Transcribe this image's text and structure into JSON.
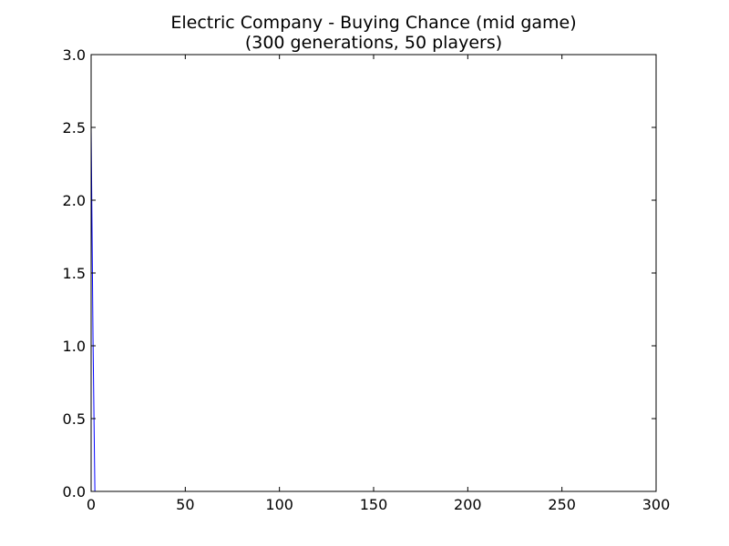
{
  "chart_data": {
    "type": "line",
    "title": "Electric Company - Buying Chance (mid game)",
    "subtitle": "(300 generations, 50 players)",
    "xlabel": "",
    "ylabel": "",
    "xlim": [
      0,
      300
    ],
    "ylim": [
      0.0,
      3.0
    ],
    "x_ticks": [
      0,
      50,
      100,
      150,
      200,
      250,
      300
    ],
    "y_ticks": [
      0.0,
      0.5,
      1.0,
      1.5,
      2.0,
      2.5,
      3.0
    ],
    "x_tick_labels": [
      "0",
      "50",
      "100",
      "150",
      "200",
      "250",
      "300"
    ],
    "y_tick_labels": [
      "0.0",
      "0.5",
      "1.0",
      "1.5",
      "2.0",
      "2.5",
      "3.0"
    ],
    "grid": false,
    "legend": "none",
    "series": [
      {
        "color": "#0000ff",
        "x": [
          0,
          1,
          2,
          3,
          10,
          50,
          100,
          150,
          200,
          250,
          299
        ],
        "y": [
          2.5,
          1.05,
          0.0,
          0.0,
          0.0,
          0.0,
          0.0,
          0.0,
          0.0,
          0.0,
          0.0
        ]
      }
    ]
  }
}
